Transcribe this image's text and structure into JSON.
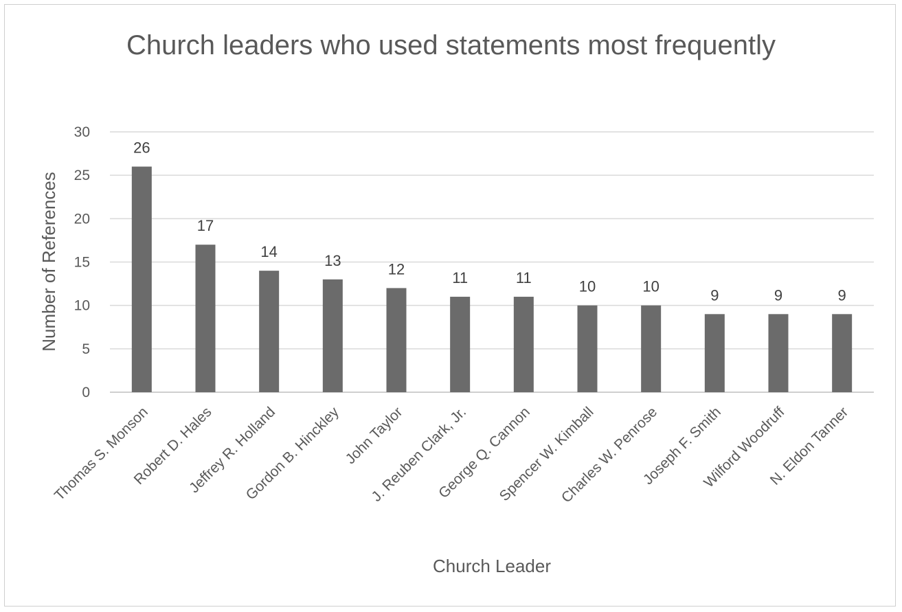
{
  "chart_data": {
    "type": "bar",
    "title": "Church leaders who used statements most frequently",
    "xlabel": "Church Leader",
    "ylabel": "Number of References",
    "ylim": [
      0,
      30
    ],
    "yticks": [
      0,
      5,
      10,
      15,
      20,
      25,
      30
    ],
    "grid": true,
    "legend": "none",
    "bar_color": "#6b6b6b",
    "categories": [
      "Thomas S. Monson",
      "Robert D. Hales",
      "Jeffrey R. Holland",
      "Gordon B. Hinckley",
      "John Taylor",
      "J. Reuben Clark, Jr.",
      "George Q. Cannon",
      "Spencer W. Kimball",
      "Charles W. Penrose",
      "Joseph F. Smith",
      "Wilford Woodruff",
      "N. Eldon Tanner"
    ],
    "values": [
      26,
      17,
      14,
      13,
      12,
      11,
      11,
      10,
      10,
      9,
      9,
      9
    ]
  }
}
